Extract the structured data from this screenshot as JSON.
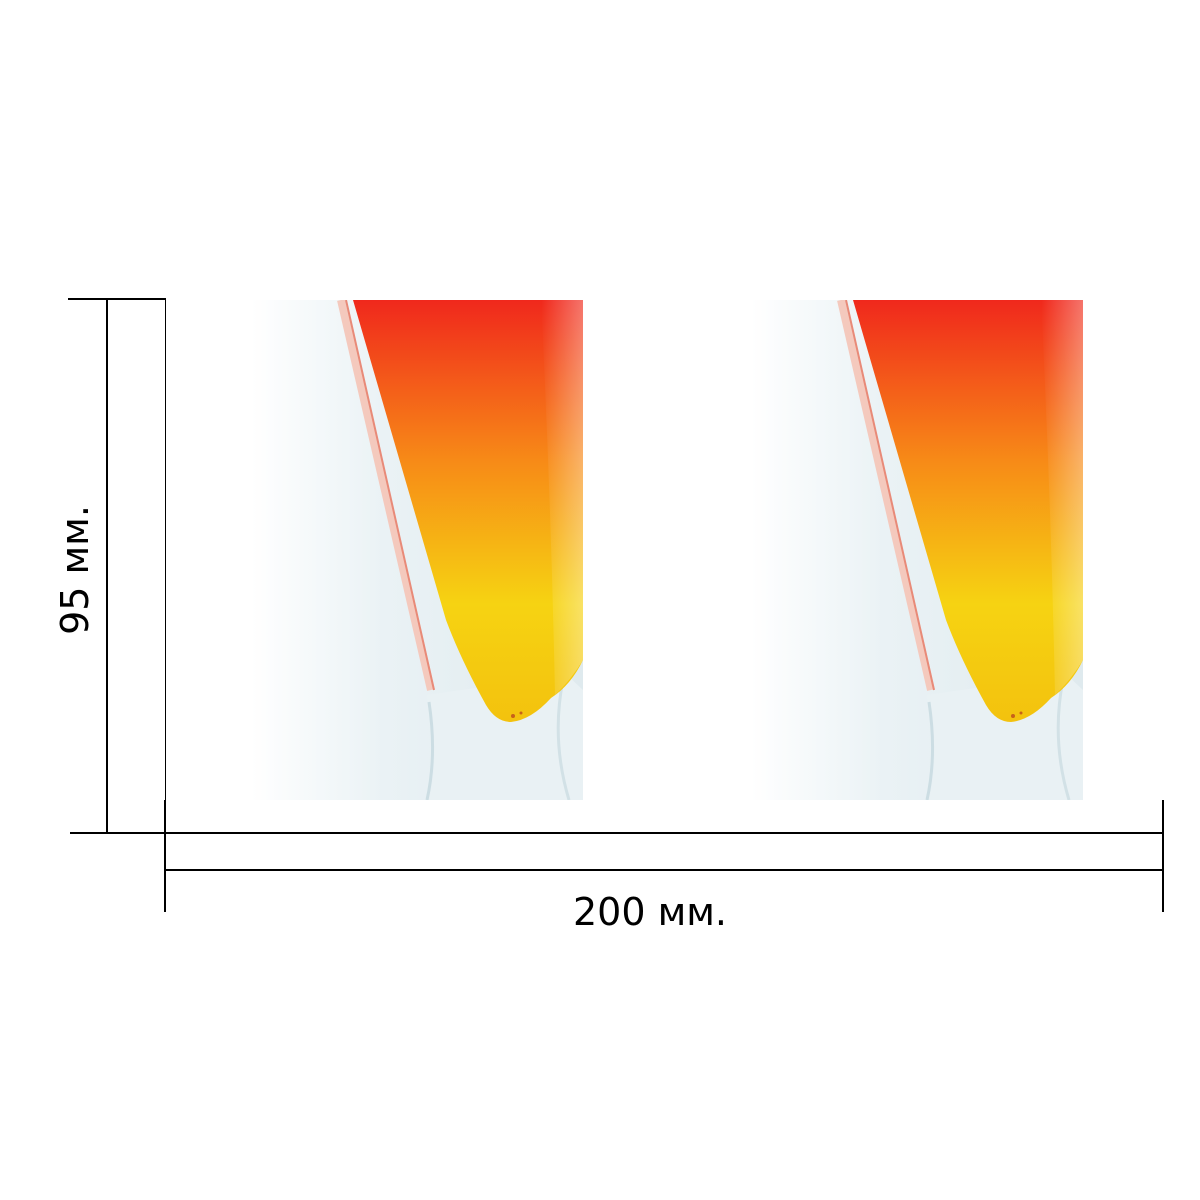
{
  "dimensions": {
    "width_label": "200 мм.",
    "height_label": "95 мм."
  },
  "product": {
    "panel_count": 2,
    "colors": {
      "background": "#e8f1f4",
      "liquid_top": "#f0281c",
      "liquid_mid": "#f78a17",
      "liquid_bottom": "#f6d312",
      "glass": "#f0d9d2"
    }
  }
}
